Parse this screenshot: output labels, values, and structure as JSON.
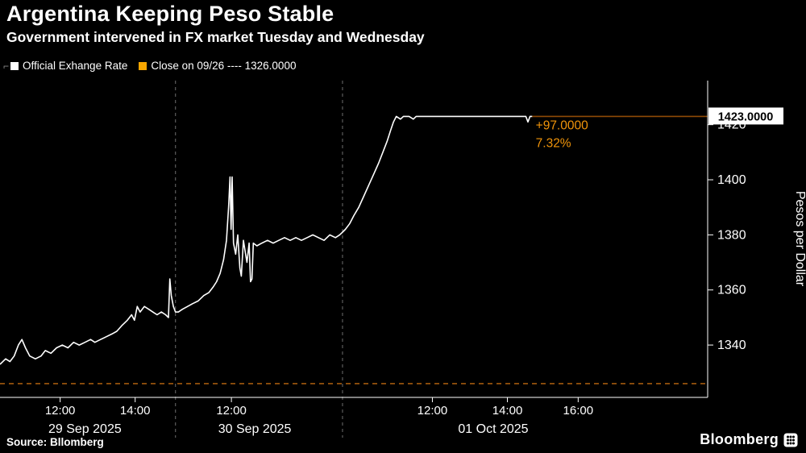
{
  "colors": {
    "background": "#000000",
    "text": "#ffffff",
    "accent_orange": "#f7a600"
  },
  "header": {
    "title": "Argentina Keeping Peso Stable",
    "subtitle": "Government intervened in FX market Tuesday and Wednesday"
  },
  "legend": {
    "marker": "⌐",
    "items": [
      {
        "label": "Official Exhange Rate",
        "color": "#ffffff"
      },
      {
        "label": "Close on 09/26 ---- 1326.0000",
        "color": "#f7a600"
      }
    ]
  },
  "footer": {
    "source": "Source: Bllomberg",
    "logo": "Bloomberg"
  },
  "chart_data": {
    "type": "line",
    "title": "Argentina Keeping Peso Stable",
    "subtitle": "Government intervened in FX market Tuesday and Wednesday",
    "ylabel": "Pesos per Dollar",
    "ylim": [
      1321,
      1436
    ],
    "y_ticks": [
      1340,
      1360,
      1380,
      1400,
      1420
    ],
    "grid": false,
    "legend_position": "top-left",
    "x_sections": [
      {
        "label": "29 Sep 2025",
        "start": 0.0,
        "end": 0.248,
        "label_x": 0.12,
        "ticks": [
          {
            "label": "12:00",
            "x": 0.085
          },
          {
            "label": "14:00",
            "x": 0.191
          }
        ]
      },
      {
        "label": "30 Sep 2025",
        "start": 0.248,
        "end": 0.484,
        "label_x": 0.36,
        "ticks": [
          {
            "label": "12:00",
            "x": 0.327
          }
        ]
      },
      {
        "label": "01 Oct 2025",
        "start": 0.484,
        "end": 1.0,
        "label_x": 0.697,
        "ticks": [
          {
            "label": "12:00",
            "x": 0.611
          },
          {
            "label": "14:00",
            "x": 0.717
          },
          {
            "label": "16:00",
            "x": 0.817
          }
        ]
      }
    ],
    "reference_line": {
      "label": "Close on 09/26",
      "value": 1326.0,
      "color": "#c06a10",
      "style": "dashed"
    },
    "last_price": {
      "text": "1423.0000",
      "value": 1423.0,
      "line_color": "#8f4a06",
      "label_bg": "#ffffff",
      "label_fg": "#000000"
    },
    "annotation": {
      "x": 0.757,
      "lines": [
        "+97.0000",
        "7.32%"
      ],
      "color": "#f0940a"
    },
    "series": [
      {
        "name": "Official Exhange Rate",
        "color": "#ffffff",
        "points": [
          [
            0.0,
            1333
          ],
          [
            0.008,
            1335
          ],
          [
            0.014,
            1334
          ],
          [
            0.02,
            1336
          ],
          [
            0.026,
            1340
          ],
          [
            0.031,
            1342
          ],
          [
            0.036,
            1339
          ],
          [
            0.042,
            1336
          ],
          [
            0.05,
            1335
          ],
          [
            0.058,
            1336
          ],
          [
            0.064,
            1338
          ],
          [
            0.072,
            1337
          ],
          [
            0.08,
            1339
          ],
          [
            0.088,
            1340
          ],
          [
            0.096,
            1339
          ],
          [
            0.104,
            1341
          ],
          [
            0.112,
            1340
          ],
          [
            0.12,
            1341
          ],
          [
            0.128,
            1342
          ],
          [
            0.134,
            1341
          ],
          [
            0.142,
            1342
          ],
          [
            0.15,
            1343
          ],
          [
            0.158,
            1344
          ],
          [
            0.165,
            1345
          ],
          [
            0.172,
            1347
          ],
          [
            0.18,
            1349
          ],
          [
            0.186,
            1351
          ],
          [
            0.19,
            1349
          ],
          [
            0.194,
            1354
          ],
          [
            0.198,
            1352
          ],
          [
            0.204,
            1354
          ],
          [
            0.21,
            1353
          ],
          [
            0.216,
            1352
          ],
          [
            0.222,
            1351
          ],
          [
            0.228,
            1352
          ],
          [
            0.234,
            1351
          ],
          [
            0.238,
            1350
          ],
          [
            0.24,
            1364
          ],
          [
            0.242,
            1358
          ],
          [
            0.245,
            1354
          ],
          [
            0.248,
            1352
          ],
          [
            0.252,
            1352
          ],
          [
            0.258,
            1353
          ],
          [
            0.265,
            1354
          ],
          [
            0.272,
            1355
          ],
          [
            0.28,
            1356
          ],
          [
            0.288,
            1358
          ],
          [
            0.295,
            1359
          ],
          [
            0.301,
            1361
          ],
          [
            0.306,
            1363
          ],
          [
            0.311,
            1366
          ],
          [
            0.316,
            1371
          ],
          [
            0.32,
            1378
          ],
          [
            0.323,
            1390
          ],
          [
            0.325,
            1401
          ],
          [
            0.3265,
            1382
          ],
          [
            0.328,
            1401
          ],
          [
            0.33,
            1377
          ],
          [
            0.333,
            1373
          ],
          [
            0.336,
            1380
          ],
          [
            0.339,
            1368
          ],
          [
            0.341,
            1365
          ],
          [
            0.344,
            1378
          ],
          [
            0.347,
            1373
          ],
          [
            0.349,
            1370
          ],
          [
            0.352,
            1377
          ],
          [
            0.354,
            1363
          ],
          [
            0.356,
            1364
          ],
          [
            0.358,
            1377
          ],
          [
            0.363,
            1376
          ],
          [
            0.37,
            1377
          ],
          [
            0.378,
            1378
          ],
          [
            0.386,
            1377
          ],
          [
            0.394,
            1378
          ],
          [
            0.402,
            1379
          ],
          [
            0.41,
            1378
          ],
          [
            0.418,
            1379
          ],
          [
            0.426,
            1378
          ],
          [
            0.434,
            1379
          ],
          [
            0.442,
            1380
          ],
          [
            0.45,
            1379
          ],
          [
            0.458,
            1378
          ],
          [
            0.466,
            1380
          ],
          [
            0.474,
            1379
          ],
          [
            0.48,
            1380
          ],
          [
            0.484,
            1381
          ],
          [
            0.488,
            1382
          ],
          [
            0.494,
            1384
          ],
          [
            0.5,
            1387
          ],
          [
            0.507,
            1390
          ],
          [
            0.514,
            1394
          ],
          [
            0.521,
            1398
          ],
          [
            0.528,
            1402
          ],
          [
            0.535,
            1406
          ],
          [
            0.541,
            1410
          ],
          [
            0.547,
            1414
          ],
          [
            0.552,
            1418
          ],
          [
            0.556,
            1421
          ],
          [
            0.56,
            1423
          ],
          [
            0.566,
            1422
          ],
          [
            0.57,
            1423
          ],
          [
            0.578,
            1423
          ],
          [
            0.584,
            1422
          ],
          [
            0.588,
            1423
          ],
          [
            0.6,
            1423
          ],
          [
            0.615,
            1423
          ],
          [
            0.63,
            1423
          ],
          [
            0.645,
            1423
          ],
          [
            0.66,
            1423
          ],
          [
            0.675,
            1423
          ],
          [
            0.69,
            1423
          ],
          [
            0.705,
            1423
          ],
          [
            0.72,
            1423
          ],
          [
            0.735,
            1423
          ],
          [
            0.743,
            1423
          ],
          [
            0.746,
            1421
          ],
          [
            0.749,
            1423
          ],
          [
            0.752,
            1423
          ]
        ]
      }
    ]
  }
}
